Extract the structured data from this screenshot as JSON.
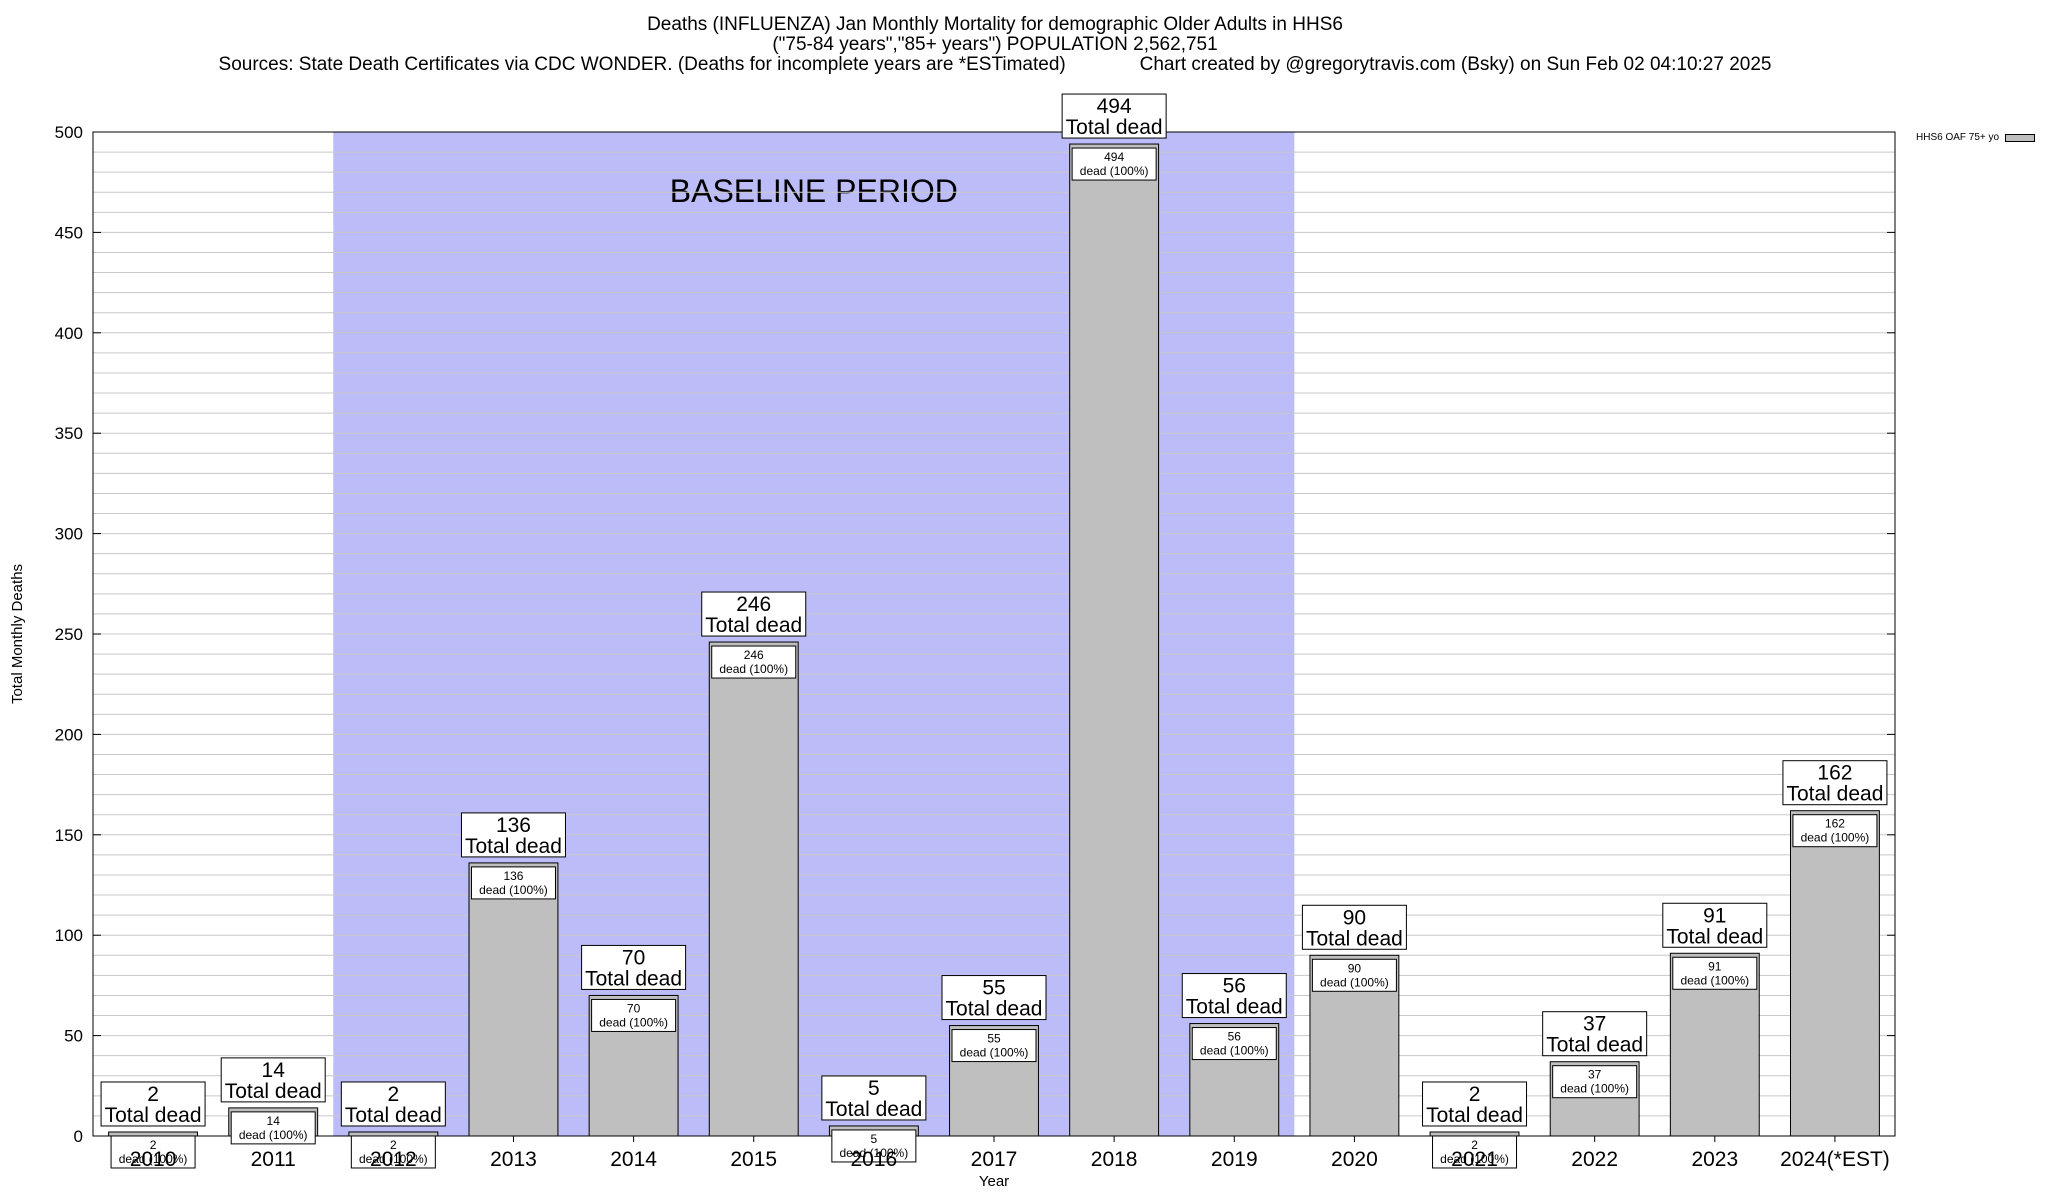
{
  "title": {
    "line1": "Deaths (INFLUENZA) Jan Monthly Mortality for demographic Older Adults in HHS6",
    "line2": "(\"75-84 years\",\"85+ years\") POPULATION 2,562,751",
    "line3": "Sources: State Death Certificates via CDC WONDER. (Deaths for incomplete years are *ESTimated)              Chart created by @gregorytravis.com (Bsky) on Sun Feb 02 04:10:27 2025"
  },
  "legend": {
    "label": "HHS6 OAF 75+ yo"
  },
  "colors": {
    "bar": "#bfbfbf",
    "baseline_band": "#bcbcf8",
    "grid": "#c8c8c8"
  },
  "chart_data": {
    "type": "bar",
    "categories": [
      "2010",
      "2011",
      "2012",
      "2013",
      "2014",
      "2015",
      "2016",
      "2017",
      "2018",
      "2019",
      "2020",
      "2021",
      "2022",
      "2023",
      "2024(*EST)"
    ],
    "series": [
      {
        "name": "HHS6 OAF 75+ yo",
        "values": [
          2,
          14,
          2,
          136,
          70,
          246,
          5,
          55,
          494,
          56,
          90,
          2,
          37,
          91,
          162
        ]
      }
    ],
    "top_label_suffix": "Total dead",
    "inner_label_suffix": "dead (100%)",
    "xlabel": "Year",
    "ylabel": "Total Monthly Deaths",
    "ylim": [
      0,
      500
    ],
    "yticks": [
      0,
      50,
      100,
      150,
      200,
      250,
      300,
      350,
      400,
      450,
      500
    ],
    "grid": true,
    "legend_position": "top-right",
    "annotation": {
      "text": "BASELINE PERIOD",
      "start": "2012",
      "end": "2019"
    }
  }
}
